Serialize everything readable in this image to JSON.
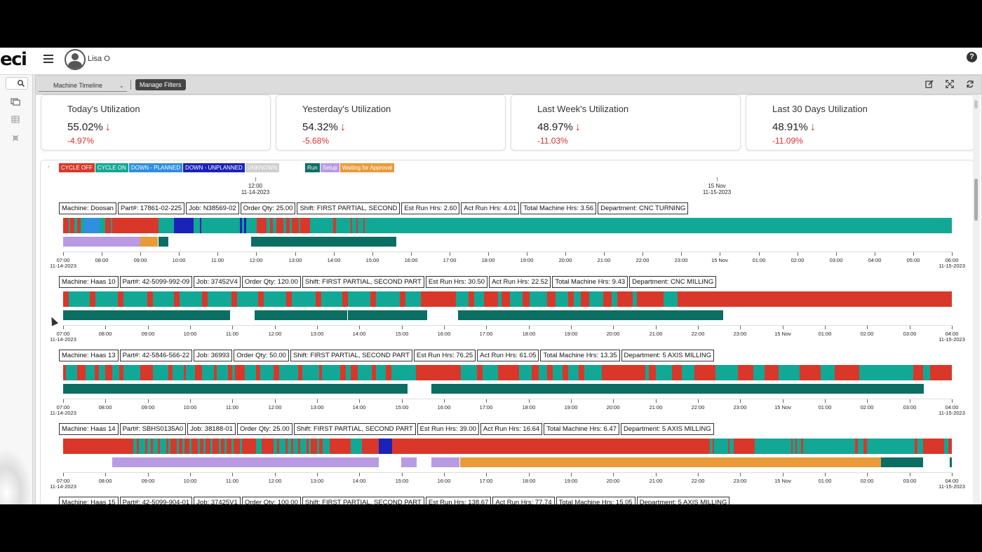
{
  "app": {
    "logo": "eci",
    "user_name": "Lisa O",
    "help_glyph": "?"
  },
  "toolbar": {
    "view_select": "Machine Timeline",
    "manage_filters_label": "Manage Filters",
    "icons": [
      "edit-icon",
      "fullscreen-icon",
      "refresh-icon"
    ]
  },
  "cards": [
    {
      "title": "Today's Utilization",
      "value": "55.02%",
      "change": "-4.97%"
    },
    {
      "title": "Yesterday's Utilization",
      "value": "54.32%",
      "change": "-5.68%"
    },
    {
      "title": "Last Week's Utilization",
      "value": "48.97%",
      "change": "-11.03%"
    },
    {
      "title": "Last 30 Days Utilization",
      "value": "48.91%",
      "change": "-11.09%"
    }
  ],
  "legend": [
    {
      "label": "CYCLE OFF",
      "color": "#d9372a"
    },
    {
      "label": "CYCLE ON",
      "color": "#12a896"
    },
    {
      "label": "DOWN - PLANNED",
      "color": "#2f8fe0"
    },
    {
      "label": "DOWN - UNPLANNED",
      "color": "#1b22b8"
    },
    {
      "label": "UNKNOWN",
      "color": "#cfcfcf"
    },
    {
      "label": "Run",
      "color": "#0b6e62"
    },
    {
      "label": "Setup",
      "color": "#b99be3"
    },
    {
      "label": "Waiting for Approval",
      "color": "#e99b3a"
    }
  ],
  "overview_axis": [
    {
      "time": "12:00",
      "date": "11-14-2023"
    },
    {
      "time": "15 Nov",
      "date": "11-15-2023"
    }
  ],
  "machines": [
    {
      "fields": [
        "Machine: Doosan",
        "Part#: 17861-02-225",
        "Job: N38569-02",
        "Order Qty: 25.00",
        "Shift: FIRST PARTIAL, SECOND",
        "Est Run Hrs: 2.60",
        "Act Run Hrs: 4.01",
        "Total Machine Hrs: 3.56",
        "Department: CNC TURNING"
      ],
      "ticks": [
        "07:00",
        "08:00",
        "09:00",
        "10:00",
        "11:00",
        "12:00",
        "13:00",
        "14:00",
        "15:00",
        "16:00",
        "17:00",
        "18:00",
        "19:00",
        "20:00",
        "21:00",
        "22:00",
        "23:00",
        "15 Nov",
        "01:00",
        "02:00",
        "03:00",
        "04:00",
        "05:00",
        "06:00"
      ],
      "start_date": "11-14-2023",
      "end_date": "11-15-2023"
    },
    {
      "fields": [
        "Machine: Haas 10",
        "Part#: 42-5099-992-09",
        "Job: 37452V4",
        "Order Qty: 120.00",
        "Shift: FIRST PARTIAL, SECOND PART",
        "Est Run Hrs: 30.50",
        "Act Run Hrs: 22.52",
        "Total Machine Hrs: 9.43",
        "Department: CNC MILLING"
      ],
      "ticks": [
        "07:00",
        "08:00",
        "09:00",
        "10:00",
        "11:00",
        "12:00",
        "13:00",
        "14:00",
        "15:00",
        "16:00",
        "17:00",
        "18:00",
        "19:00",
        "20:00",
        "21:00",
        "22:00",
        "23:00",
        "15 Nov",
        "01:00",
        "02:00",
        "03:00",
        "04:00"
      ],
      "start_date": "11-14-2023",
      "end_date": "11-15-2023"
    },
    {
      "fields": [
        "Machine: Haas 13",
        "Part#: 42-5846-566-22",
        "Job: 36993",
        "Order Qty: 50.00",
        "Shift: FIRST PARTIAL, SECOND PART",
        "Est Run Hrs: 76.25",
        "Act Run Hrs: 61.05",
        "Total Machine Hrs: 13.35",
        "Department: 5 AXIS MILLING"
      ],
      "ticks": [
        "07:00",
        "08:00",
        "09:00",
        "10:00",
        "11:00",
        "12:00",
        "13:00",
        "14:00",
        "15:00",
        "16:00",
        "17:00",
        "18:00",
        "19:00",
        "20:00",
        "21:00",
        "22:00",
        "23:00",
        "15 Nov",
        "01:00",
        "02:00",
        "03:00",
        "04:00"
      ],
      "start_date": "11-14-2023",
      "end_date": "11-15-2023"
    },
    {
      "fields": [
        "Machine: Haas 14",
        "Part#: SBHS0135A0",
        "Job: 38188-01",
        "Order Qty: 25.00",
        "Shift: FIRST PARTIAL, SECOND PART",
        "Est Run Hrs: 39.00",
        "Act Run Hrs: 16.64",
        "Total Machine Hrs: 6.47",
        "Department: 5 AXIS MILLING"
      ],
      "ticks": [
        "07:00",
        "08:00",
        "09:00",
        "10:00",
        "11:00",
        "12:00",
        "13:00",
        "14:00",
        "15:00",
        "16:00",
        "17:00",
        "18:00",
        "19:00",
        "20:00",
        "21:00",
        "22:00",
        "23:00",
        "15 Nov",
        "01:00",
        "02:00",
        "03:00",
        "04:00"
      ],
      "start_date": "11-14-2023",
      "end_date": "11-15-2023"
    },
    {
      "fields": [
        "Machine: Haas 15",
        "Part#: 42-5099-904-01",
        "Job: 37425V1",
        "Order Qty: 100.00",
        "Shift: FIRST PARTIAL, SECOND PART",
        "Est Run Hrs: 138.67",
        "Act Run Hrs: 77.74",
        "Total Machine Hrs: 15.05",
        "Department: 5 AXIS MILLING"
      ],
      "ticks": [],
      "start_date": "",
      "end_date": ""
    }
  ]
}
